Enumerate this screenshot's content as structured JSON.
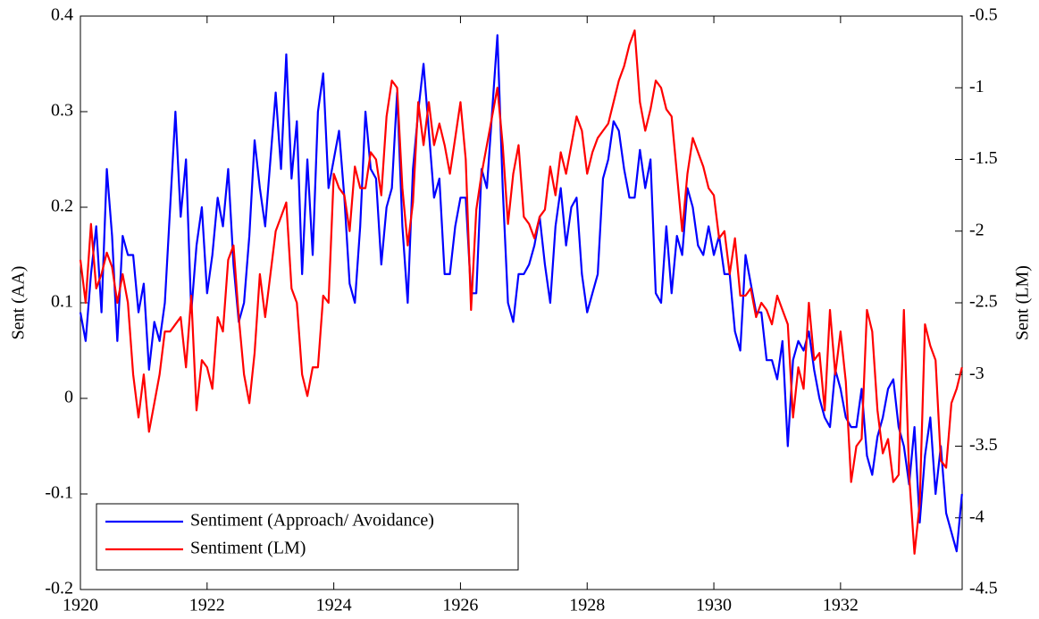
{
  "chart_data": {
    "type": "line",
    "x": [
      1920,
      1920.083,
      1920.167,
      1920.25,
      1920.333,
      1920.417,
      1920.5,
      1920.583,
      1920.667,
      1920.75,
      1920.833,
      1920.917,
      1921,
      1921.083,
      1921.167,
      1921.25,
      1921.333,
      1921.417,
      1921.5,
      1921.583,
      1921.667,
      1921.75,
      1921.833,
      1921.917,
      1922,
      1922.083,
      1922.167,
      1922.25,
      1922.333,
      1922.417,
      1922.5,
      1922.583,
      1922.667,
      1922.75,
      1922.833,
      1922.917,
      1923,
      1923.083,
      1923.167,
      1923.25,
      1923.333,
      1923.417,
      1923.5,
      1923.583,
      1923.667,
      1923.75,
      1923.833,
      1923.917,
      1924,
      1924.083,
      1924.167,
      1924.25,
      1924.333,
      1924.417,
      1924.5,
      1924.583,
      1924.667,
      1924.75,
      1924.833,
      1924.917,
      1925,
      1925.083,
      1925.167,
      1925.25,
      1925.333,
      1925.417,
      1925.5,
      1925.583,
      1925.667,
      1925.75,
      1925.833,
      1925.917,
      1926,
      1926.083,
      1926.167,
      1926.25,
      1926.333,
      1926.417,
      1926.5,
      1926.583,
      1926.667,
      1926.75,
      1926.833,
      1926.917,
      1927,
      1927.083,
      1927.167,
      1927.25,
      1927.333,
      1927.417,
      1927.5,
      1927.583,
      1927.667,
      1927.75,
      1927.833,
      1927.917,
      1928,
      1928.083,
      1928.167,
      1928.25,
      1928.333,
      1928.417,
      1928.5,
      1928.583,
      1928.667,
      1928.75,
      1928.833,
      1928.917,
      1929,
      1929.083,
      1929.167,
      1929.25,
      1929.333,
      1929.417,
      1929.5,
      1929.583,
      1929.667,
      1929.75,
      1929.833,
      1929.917,
      1930,
      1930.083,
      1930.167,
      1930.25,
      1930.333,
      1930.417,
      1930.5,
      1930.583,
      1930.667,
      1930.75,
      1930.833,
      1930.917,
      1931,
      1931.083,
      1931.167,
      1931.25,
      1931.333,
      1931.417,
      1931.5,
      1931.583,
      1931.667,
      1931.75,
      1931.833,
      1931.917,
      1932,
      1932.083,
      1932.167,
      1932.25,
      1932.333,
      1932.417,
      1932.5,
      1932.583,
      1932.667,
      1932.75,
      1932.833,
      1932.917,
      1933,
      1933.083,
      1933.167,
      1933.25,
      1933.333,
      1933.417,
      1933.5,
      1933.583,
      1933.667,
      1933.75,
      1933.833,
      1933.917
    ],
    "series": [
      {
        "name": "Sentiment (Approach/ Avoidance)",
        "color": "#0000ff",
        "axis": "y",
        "values": [
          0.09,
          0.06,
          0.13,
          0.18,
          0.09,
          0.24,
          0.17,
          0.06,
          0.17,
          0.15,
          0.15,
          0.09,
          0.12,
          0.03,
          0.08,
          0.06,
          0.1,
          0.2,
          0.3,
          0.19,
          0.25,
          0.09,
          0.16,
          0.2,
          0.11,
          0.15,
          0.21,
          0.18,
          0.24,
          0.14,
          0.08,
          0.1,
          0.17,
          0.27,
          0.22,
          0.18,
          0.25,
          0.32,
          0.24,
          0.36,
          0.23,
          0.29,
          0.13,
          0.25,
          0.15,
          0.3,
          0.34,
          0.22,
          0.25,
          0.28,
          0.21,
          0.12,
          0.1,
          0.18,
          0.3,
          0.24,
          0.23,
          0.14,
          0.2,
          0.22,
          0.32,
          0.18,
          0.1,
          0.24,
          0.3,
          0.35,
          0.28,
          0.21,
          0.23,
          0.13,
          0.13,
          0.18,
          0.21,
          0.21,
          0.11,
          0.11,
          0.24,
          0.22,
          0.3,
          0.38,
          0.22,
          0.1,
          0.08,
          0.13,
          0.13,
          0.14,
          0.16,
          0.19,
          0.14,
          0.1,
          0.18,
          0.22,
          0.16,
          0.2,
          0.21,
          0.13,
          0.09,
          0.11,
          0.13,
          0.23,
          0.25,
          0.29,
          0.28,
          0.24,
          0.21,
          0.21,
          0.26,
          0.22,
          0.25,
          0.11,
          0.1,
          0.18,
          0.11,
          0.17,
          0.15,
          0.22,
          0.2,
          0.16,
          0.15,
          0.18,
          0.15,
          0.17,
          0.13,
          0.13,
          0.07,
          0.05,
          0.15,
          0.12,
          0.09,
          0.09,
          0.04,
          0.04,
          0.02,
          0.06,
          -0.05,
          0.04,
          0.06,
          0.05,
          0.07,
          0.03,
          0.0,
          -0.02,
          -0.03,
          0.03,
          0.01,
          -0.02,
          -0.03,
          -0.03,
          0.01,
          -0.06,
          -0.08,
          -0.04,
          -0.02,
          0.01,
          0.02,
          -0.03,
          -0.05,
          -0.09,
          -0.03,
          -0.13,
          -0.06,
          -0.02,
          -0.1,
          -0.05,
          -0.12,
          -0.14,
          -0.16,
          -0.1
        ]
      },
      {
        "name": "Sentiment (LM)",
        "color": "#ff0000",
        "axis": "y2",
        "values": [
          -2.2,
          -2.5,
          -1.95,
          -2.4,
          -2.3,
          -2.15,
          -2.25,
          -2.5,
          -2.3,
          -2.5,
          -3.0,
          -3.3,
          -3.0,
          -3.4,
          -3.2,
          -3.0,
          -2.7,
          -2.7,
          -2.65,
          -2.6,
          -2.95,
          -2.45,
          -3.25,
          -2.9,
          -2.95,
          -3.1,
          -2.6,
          -2.7,
          -2.2,
          -2.1,
          -2.6,
          -3.0,
          -3.2,
          -2.85,
          -2.3,
          -2.6,
          -2.3,
          -2.0,
          -1.9,
          -1.8,
          -2.4,
          -2.5,
          -3.0,
          -3.15,
          -2.95,
          -2.95,
          -2.45,
          -2.5,
          -1.6,
          -1.7,
          -1.75,
          -2.0,
          -1.55,
          -1.7,
          -1.7,
          -1.45,
          -1.5,
          -1.75,
          -1.2,
          -0.95,
          -1.0,
          -1.7,
          -2.1,
          -1.8,
          -1.1,
          -1.4,
          -1.1,
          -1.4,
          -1.25,
          -1.4,
          -1.6,
          -1.35,
          -1.1,
          -1.5,
          -2.55,
          -1.85,
          -1.6,
          -1.4,
          -1.2,
          -1.0,
          -1.4,
          -1.95,
          -1.6,
          -1.4,
          -1.9,
          -1.95,
          -2.05,
          -1.9,
          -1.85,
          -1.55,
          -1.75,
          -1.45,
          -1.6,
          -1.4,
          -1.2,
          -1.3,
          -1.6,
          -1.45,
          -1.35,
          -1.3,
          -1.25,
          -1.1,
          -0.95,
          -0.85,
          -0.7,
          -0.6,
          -1.1,
          -1.3,
          -1.15,
          -0.95,
          -1.0,
          -1.15,
          -1.2,
          -1.6,
          -2.0,
          -1.6,
          -1.35,
          -1.45,
          -1.55,
          -1.7,
          -1.75,
          -2.05,
          -2.0,
          -2.3,
          -2.05,
          -2.45,
          -2.45,
          -2.4,
          -2.6,
          -2.5,
          -2.55,
          -2.65,
          -2.45,
          -2.55,
          -2.65,
          -3.3,
          -2.95,
          -3.1,
          -2.5,
          -2.9,
          -2.85,
          -3.25,
          -2.55,
          -3.0,
          -2.7,
          -3.05,
          -3.75,
          -3.5,
          -3.45,
          -2.55,
          -2.7,
          -3.25,
          -3.55,
          -3.45,
          -3.75,
          -3.7,
          -2.55,
          -3.7,
          -4.25,
          -3.9,
          -2.65,
          -2.8,
          -2.9,
          -3.6,
          -3.65,
          -3.2,
          -3.1,
          -2.95
        ]
      }
    ],
    "ylabel": "Sent (AA)",
    "y2label": "Sent (LM)",
    "xlim": [
      1920,
      1933.92
    ],
    "xticks": [
      1920,
      1922,
      1924,
      1926,
      1928,
      1930,
      1932
    ],
    "ylim": [
      -0.2,
      0.4
    ],
    "yticks": [
      -0.2,
      -0.1,
      0,
      0.1,
      0.2,
      0.3,
      0.4
    ],
    "y2lim": [
      -4.5,
      -0.5
    ],
    "y2ticks": [
      -4.5,
      -4,
      -3.5,
      -3,
      -2.5,
      -2,
      -1.5,
      -1,
      -0.5
    ],
    "legend": "lower left"
  }
}
